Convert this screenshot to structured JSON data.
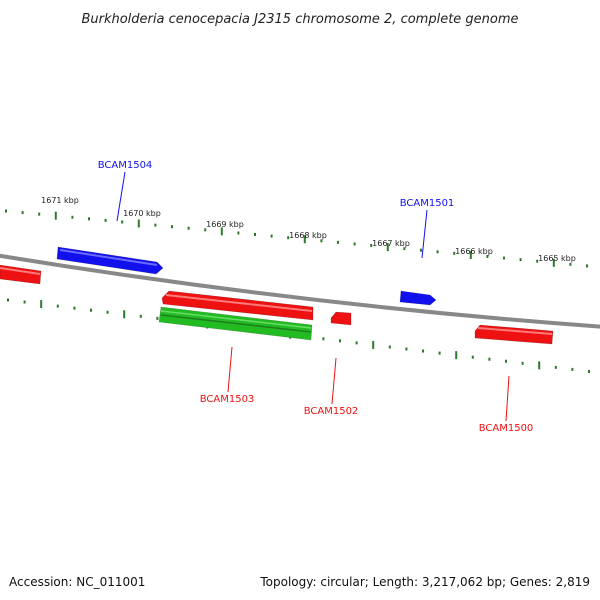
{
  "title": "Burkholderia cenocepacia J2315 chromosome 2, complete genome",
  "colors": {
    "forward": "#1111ee",
    "reverse": "#ee1111",
    "rna": "#22bb22",
    "tick": "#2a7a2a",
    "backbone": "#888888"
  },
  "ticks": [
    "1671 kbp",
    "1670 kbp",
    "1669 kbp",
    "1668 kbp",
    "1667 kbp",
    "1666 kbp",
    "1665 kbp"
  ],
  "genes": [
    {
      "label": "BCAM1504",
      "strand": "forward",
      "labelled": true
    },
    {
      "label": "BCAM1501",
      "strand": "forward",
      "labelled": true
    },
    {
      "label": "BCAM1503",
      "strand": "reverse",
      "labelled": true
    },
    {
      "label": "BCAM1502",
      "strand": "reverse",
      "labelled": true
    },
    {
      "label": "BCAM1500",
      "strand": "reverse",
      "labelled": true
    },
    {
      "label": "",
      "strand": "reverse",
      "labelled": false
    },
    {
      "label": "",
      "strand": "rna",
      "labelled": false
    }
  ],
  "footer": {
    "accession": "Accession: NC_011001",
    "summary": "Topology: circular; Length: 3,217,062 bp; Genes: 2,819"
  }
}
